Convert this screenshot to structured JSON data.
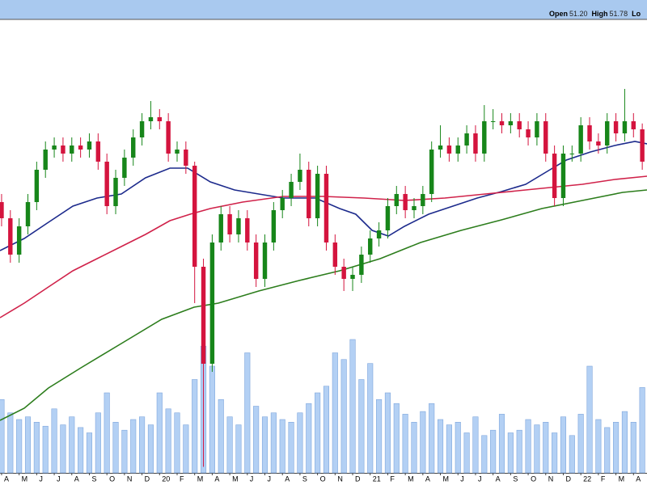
{
  "chart_data": {
    "type": "candlestick",
    "ohlc_legend": [
      {
        "label": "Open",
        "value": "51.20"
      },
      {
        "label": "High",
        "value": "51.78"
      },
      {
        "label": "Lo"
      }
    ],
    "x": [
      0,
      0.5,
      1,
      1.5,
      2,
      2.5,
      3,
      3.5,
      4,
      4.5,
      5,
      5.5,
      6,
      6.5,
      7,
      7.5,
      8,
      8.5,
      9,
      9.5,
      10,
      10.5,
      11,
      11.5,
      12,
      12.5,
      13,
      13.5,
      14,
      14.5,
      15,
      15.5,
      16,
      16.5,
      17,
      17.5,
      18,
      18.5,
      19,
      19.5,
      20,
      20.5,
      21,
      21.5,
      22,
      22.5,
      23,
      23.5,
      24,
      24.5,
      25,
      25.5,
      26,
      26.5,
      27,
      27.5,
      28,
      28.5,
      29,
      29.5,
      30,
      30.5,
      31,
      31.5,
      32,
      32.5,
      33,
      33.5,
      34,
      34.5,
      35,
      35.5,
      36,
      36.5
    ],
    "open": [
      44.0,
      42.4,
      38.8,
      41.6,
      44.0,
      47.2,
      49.2,
      49.6,
      48.8,
      49.6,
      49.2,
      50.0,
      48.0,
      43.6,
      46.4,
      48.4,
      50.4,
      52.0,
      52.4,
      52.0,
      48.8,
      49.2,
      47.6,
      37.6,
      28.0,
      40.0,
      42.8,
      40.8,
      42.4,
      40.0,
      36.4,
      40.0,
      43.2,
      44.4,
      46.0,
      47.2,
      42.4,
      46.8,
      40.0,
      37.6,
      36.4,
      36.8,
      38.8,
      40.4,
      41.2,
      43.6,
      44.8,
      43.2,
      43.6,
      44.8,
      49.2,
      49.6,
      48.8,
      49.6,
      50.8,
      48.8,
      52.0,
      52.0,
      51.6,
      52.0,
      51.2,
      50.4,
      52.0,
      48.8,
      44.4,
      48.8,
      48.8,
      51.6,
      50.0,
      49.6,
      52.0,
      50.8,
      52.0,
      51.2
    ],
    "high": [
      44.8,
      43.2,
      42.4,
      44.8,
      48.0,
      50.0,
      50.4,
      50.4,
      50.4,
      50.4,
      50.8,
      50.8,
      48.8,
      47.2,
      49.2,
      51.2,
      52.8,
      54.0,
      53.2,
      52.8,
      50.0,
      50.0,
      48.0,
      38.4,
      40.8,
      43.6,
      43.6,
      43.2,
      43.2,
      40.8,
      40.8,
      44.0,
      45.2,
      46.8,
      48.8,
      48.0,
      47.6,
      47.6,
      40.8,
      38.4,
      37.6,
      39.6,
      41.2,
      42.0,
      44.4,
      45.6,
      45.6,
      44.4,
      45.6,
      50.0,
      51.6,
      50.4,
      50.4,
      51.6,
      51.6,
      53.6,
      53.2,
      52.8,
      52.8,
      52.8,
      52.0,
      52.8,
      52.8,
      49.6,
      49.6,
      49.6,
      52.4,
      52.4,
      50.8,
      52.8,
      52.8,
      55.2,
      52.8,
      51.78
    ],
    "low": [
      41.6,
      38.0,
      38.0,
      40.8,
      43.2,
      46.4,
      48.4,
      48.0,
      48.0,
      48.4,
      48.4,
      47.2,
      42.8,
      42.8,
      45.6,
      47.6,
      49.6,
      51.2,
      51.2,
      48.0,
      48.0,
      46.8,
      34.0,
      17.8,
      27.2,
      39.2,
      40.0,
      40.0,
      39.2,
      35.6,
      35.6,
      39.2,
      42.4,
      43.6,
      45.2,
      41.6,
      41.6,
      39.2,
      36.8,
      35.2,
      35.2,
      36.0,
      38.0,
      39.6,
      40.4,
      42.8,
      42.4,
      42.4,
      42.8,
      44.0,
      48.4,
      48.0,
      48.0,
      48.8,
      48.0,
      48.0,
      51.2,
      50.8,
      50.8,
      50.4,
      49.6,
      49.6,
      48.0,
      43.6,
      43.6,
      48.0,
      48.0,
      49.2,
      48.8,
      48.8,
      50.0,
      50.0,
      50.4,
      47.2
    ],
    "close": [
      42.4,
      38.8,
      41.6,
      44.0,
      47.2,
      49.2,
      49.6,
      48.8,
      49.6,
      49.2,
      50.0,
      48.0,
      43.6,
      46.4,
      48.4,
      50.4,
      52.0,
      52.4,
      52.0,
      48.8,
      49.2,
      47.6,
      37.6,
      28.0,
      40.0,
      42.8,
      40.8,
      42.4,
      40.0,
      36.4,
      40.0,
      43.2,
      44.4,
      46.0,
      47.2,
      42.4,
      46.8,
      40.0,
      37.6,
      36.4,
      36.8,
      38.8,
      40.4,
      41.2,
      43.6,
      44.8,
      43.2,
      43.6,
      44.8,
      49.2,
      49.6,
      48.8,
      49.6,
      50.8,
      48.8,
      52.0,
      52.0,
      51.6,
      52.0,
      51.2,
      50.4,
      52.0,
      48.8,
      44.4,
      48.8,
      48.8,
      51.6,
      50.0,
      49.6,
      52.0,
      50.8,
      52.0,
      51.2,
      48.0
    ],
    "up_color": "#17861a",
    "down_color": "#d4143e",
    "ylim": [
      16,
      62
    ],
    "xlim": [
      -0.09,
      36.77
    ],
    "volume": {
      "color": "#b3d0f4",
      "ylim": [
        0,
        20
      ],
      "values": [
        5.5,
        4.5,
        4.0,
        4.2,
        3.8,
        3.5,
        4.8,
        3.6,
        4.2,
        3.4,
        3.0,
        4.5,
        6.0,
        3.8,
        3.2,
        4.0,
        4.2,
        3.6,
        6.0,
        4.8,
        4.5,
        3.6,
        7.0,
        9.5,
        8.0,
        5.5,
        4.2,
        3.6,
        9.0,
        5.0,
        4.2,
        4.5,
        4.0,
        3.8,
        4.5,
        5.2,
        6.0,
        6.5,
        9.0,
        8.5,
        10.0,
        7.0,
        8.2,
        5.5,
        6.0,
        5.2,
        4.4,
        3.8,
        4.6,
        5.2,
        4.0,
        3.6,
        3.8,
        3.0,
        4.2,
        2.8,
        3.2,
        4.4,
        3.0,
        3.2,
        4.0,
        3.6,
        3.8,
        3.0,
        4.2,
        2.8,
        4.4,
        8.0,
        4.0,
        3.4,
        3.8,
        4.6,
        3.8,
        6.4
      ]
    },
    "moving_averages": [
      {
        "color": "#1c2a8c",
        "x": [
          -0.09,
          1.29,
          2.67,
          4.06,
          5.44,
          6.82,
          8.2,
          9.59,
          10.6,
          11.89,
          13.27,
          14.65,
          16.04,
          17.88,
          19.26,
          20.18,
          21.11,
          22.03,
          22.95,
          24.33,
          25.71,
          27.1,
          28.48,
          29.86,
          31.24,
          32.17,
          33.55,
          34.93,
          36.08,
          36.77
        ],
        "values": [
          39.2,
          40.4,
          42.0,
          43.6,
          44.4,
          44.8,
          46.4,
          47.36,
          47.36,
          46.0,
          45.2,
          44.8,
          44.4,
          44.4,
          43.36,
          42.8,
          41.2,
          40.64,
          41.6,
          42.8,
          43.6,
          44.4,
          45.04,
          45.76,
          47.2,
          48.16,
          48.96,
          49.6,
          50.0,
          49.76
        ]
      },
      {
        "color": "#d0224a",
        "x": [
          -0.09,
          1.29,
          2.67,
          4.06,
          5.44,
          6.82,
          8.2,
          9.59,
          10.74,
          11.89,
          13.73,
          16.04,
          18.34,
          20.65,
          22.95,
          25.25,
          27.56,
          29.86,
          31.24,
          33.09,
          34.93,
          36.77
        ],
        "values": [
          32.56,
          34.0,
          35.6,
          37.2,
          38.4,
          39.6,
          40.8,
          42.16,
          42.8,
          43.36,
          44.0,
          44.56,
          44.56,
          44.4,
          44.16,
          44.4,
          44.8,
          45.2,
          45.44,
          45.76,
          46.24,
          46.56
        ]
      },
      {
        "color": "#2c7d1c",
        "x": [
          -0.09,
          1.29,
          2.67,
          4.52,
          6.82,
          9.12,
          10.97,
          12.35,
          14.65,
          16.96,
          19.26,
          21.57,
          23.87,
          26.18,
          28.48,
          30.78,
          33.09,
          35.39,
          36.77
        ],
        "values": [
          22.4,
          23.6,
          25.6,
          27.6,
          30.0,
          32.4,
          33.6,
          34.0,
          35.2,
          36.24,
          37.2,
          38.4,
          40.0,
          41.2,
          42.24,
          43.36,
          44.16,
          44.96,
          45.2
        ]
      }
    ],
    "xticks": [
      {
        "value": 0,
        "label": "A"
      },
      {
        "value": 1,
        "label": "M"
      },
      {
        "value": 2,
        "label": "J"
      },
      {
        "value": 3,
        "label": "J"
      },
      {
        "value": 4,
        "label": "A"
      },
      {
        "value": 5,
        "label": "S"
      },
      {
        "value": 6,
        "label": "O"
      },
      {
        "value": 7,
        "label": "N"
      },
      {
        "value": 8,
        "label": "D"
      },
      {
        "value": 9,
        "label": "20"
      },
      {
        "value": 10,
        "label": "F"
      },
      {
        "value": 11,
        "label": "M"
      },
      {
        "value": 12,
        "label": "A"
      },
      {
        "value": 13,
        "label": "M"
      },
      {
        "value": 14,
        "label": "J"
      },
      {
        "value": 15,
        "label": "J"
      },
      {
        "value": 16,
        "label": "A"
      },
      {
        "value": 17,
        "label": "S"
      },
      {
        "value": 18,
        "label": "O"
      },
      {
        "value": 19,
        "label": "N"
      },
      {
        "value": 20,
        "label": "D"
      },
      {
        "value": 21,
        "label": "21"
      },
      {
        "value": 22,
        "label": "F"
      },
      {
        "value": 23,
        "label": "M"
      },
      {
        "value": 24,
        "label": "A"
      },
      {
        "value": 25,
        "label": "M"
      },
      {
        "value": 26,
        "label": "J"
      },
      {
        "value": 27,
        "label": "J"
      },
      {
        "value": 28,
        "label": "A"
      },
      {
        "value": 29,
        "label": "S"
      },
      {
        "value": 30,
        "label": "O"
      },
      {
        "value": 31,
        "label": "N"
      },
      {
        "value": 32,
        "label": "D"
      },
      {
        "value": 33,
        "label": "22"
      },
      {
        "value": 34,
        "label": "F"
      },
      {
        "value": 35,
        "label": "M"
      },
      {
        "value": 36,
        "label": "A"
      }
    ]
  }
}
